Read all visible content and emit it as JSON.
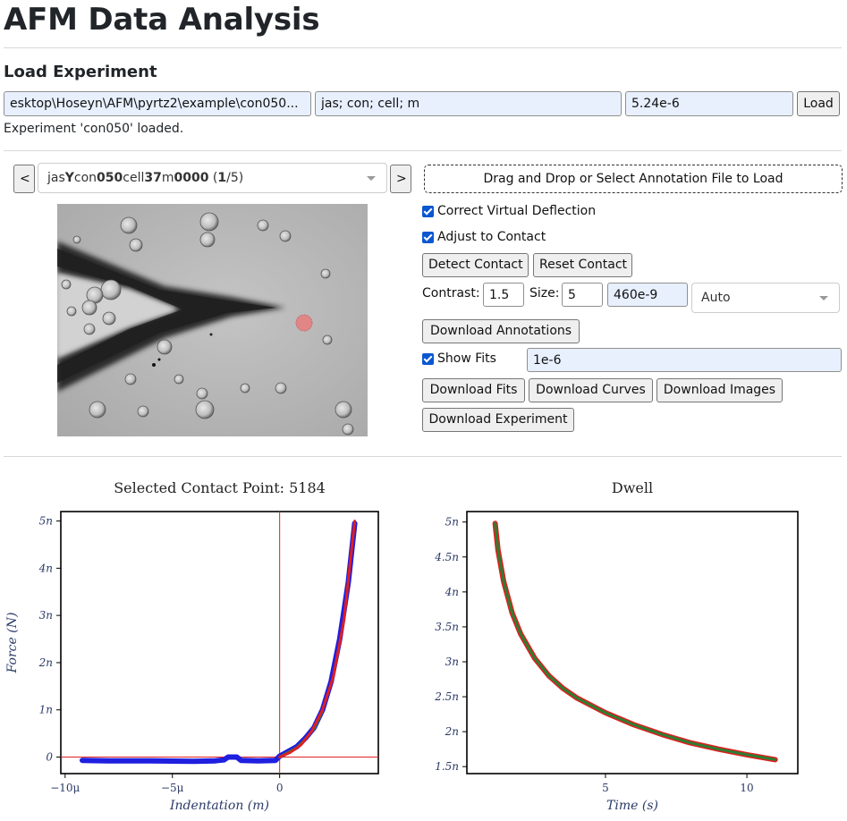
{
  "header": {
    "title": "AFM Data Analysis"
  },
  "load": {
    "section_title": "Load Experiment",
    "path_value": "...esktop\\Hoseyn\\AFM\\pyrtz2\\example\\con050",
    "keys_value": "jas; con; cell; m",
    "radius_value": "5.24e-6",
    "load_label": "Load",
    "status": "Experiment 'con050' loaded."
  },
  "curve_selector": {
    "prev_label": "<",
    "next_label": ">",
    "parts": [
      {
        "text": "jas",
        "bold": false
      },
      {
        "text": "Y",
        "bold": true
      },
      {
        "text": "con",
        "bold": false
      },
      {
        "text": "050",
        "bold": true
      },
      {
        "text": "cell",
        "bold": false
      },
      {
        "text": "37",
        "bold": true
      },
      {
        "text": "m",
        "bold": false
      },
      {
        "text": "0000",
        "bold": true
      },
      {
        "text": " (",
        "bold": false
      },
      {
        "text": "1",
        "bold": true
      },
      {
        "text": "/5)",
        "bold": false
      }
    ]
  },
  "annotation": {
    "dropzone_label": "Drag and Drop or Select Annotation File to Load"
  },
  "controls": {
    "correct_virtual_deflection": {
      "label": "Correct Virtual Deflection",
      "checked": true
    },
    "adjust_to_contact": {
      "label": "Adjust to Contact",
      "checked": true
    },
    "detect_contact_label": "Detect Contact",
    "reset_contact_label": "Reset Contact",
    "contrast_label": "Contrast:",
    "contrast_value": "1.5",
    "size_label": "Size:",
    "size_value": "5",
    "pixel_value": "460e-9",
    "mode_value": "Auto",
    "download_annotations_label": "Download Annotations",
    "show_fits": {
      "label": "Show Fits",
      "checked": true
    },
    "fit_value": "1e-6",
    "download_fits_label": "Download Fits",
    "download_curves_label": "Download Curves",
    "download_images_label": "Download Images",
    "download_experiment_label": "Download Experiment"
  },
  "chart_data": [
    {
      "type": "line",
      "title": "Selected Contact Point: 5184",
      "xlabel": "Indentation (m)",
      "ylabel": "Force (N)",
      "xlim": [
        -1.02e-05,
        4.6e-06
      ],
      "ylim": [
        -3.5e-10,
        5.2e-09
      ],
      "xticks": [
        {
          "v": -1e-05,
          "label": "−10μ"
        },
        {
          "v": -5e-06,
          "label": "−5μ"
        },
        {
          "v": 0,
          "label": "0"
        }
      ],
      "yticks": [
        {
          "v": 0,
          "label": "0"
        },
        {
          "v": 1e-09,
          "label": "1n"
        },
        {
          "v": 2e-09,
          "label": "2n"
        },
        {
          "v": 3e-09,
          "label": "3n"
        },
        {
          "v": 4e-09,
          "label": "4n"
        },
        {
          "v": 5e-09,
          "label": "5n"
        }
      ],
      "contact_point": [
        0,
        0
      ],
      "grid": false,
      "series": [
        {
          "color": "#1f1fe0",
          "x": [
            -9.2e-06,
            -8e-06,
            -6e-06,
            -4e-06,
            -3e-06,
            -2.6e-06,
            -2.4e-06,
            -2e-06,
            -1.8e-06,
            -1e-06,
            -2e-07,
            0,
            4e-07,
            8e-07,
            1.2e-06,
            1.6e-06,
            2e-06,
            2.4e-06,
            2.8e-06,
            3.2e-06,
            3.5e-06
          ],
          "y": [
            -7e-11,
            -8e-11,
            -8e-11,
            -9e-11,
            -8e-11,
            -6e-11,
            0.0,
            0.0,
            -7e-11,
            -8e-11,
            -7e-11,
            2e-11,
            1.2e-10,
            2.2e-10,
            4e-10,
            6.2e-10,
            1e-09,
            1.6e-09,
            2.5e-09,
            3.7e-09,
            4.95e-09
          ]
        },
        {
          "color": "#2e7d32",
          "x": [
            0,
            4e-07,
            8e-07,
            1.2e-06,
            1.6e-06,
            2e-06
          ],
          "y": [
            0.0,
            1e-10,
            2e-10,
            3.8e-10,
            6e-10,
            9.8e-10
          ]
        },
        {
          "color": "#e01f1f",
          "x": [
            0,
            5e-07,
            1e-06,
            1.5e-06,
            2e-06,
            2.5e-06,
            3e-06,
            3.5e-06
          ],
          "y": [
            0.0,
            1e-10,
            2.6e-10,
            5.5e-10,
            1e-09,
            1.7e-09,
            2.9e-09,
            5e-09
          ]
        }
      ]
    },
    {
      "type": "line",
      "title": "Dwell",
      "xlabel": "Time (s)",
      "ylabel": "Force (N)",
      "xlim": [
        0.1,
        11.8
      ],
      "ylim": [
        1.4e-09,
        5.15e-09
      ],
      "xticks": [
        {
          "v": 5,
          "label": "5"
        },
        {
          "v": 10,
          "label": "10"
        }
      ],
      "yticks": [
        {
          "v": 1.5e-09,
          "label": "1.5n"
        },
        {
          "v": 2e-09,
          "label": "2n"
        },
        {
          "v": 2.5e-09,
          "label": "2.5n"
        },
        {
          "v": 3e-09,
          "label": "3n"
        },
        {
          "v": 3.5e-09,
          "label": "3.5n"
        },
        {
          "v": 4e-09,
          "label": "4n"
        },
        {
          "v": 4.5e-09,
          "label": "4.5n"
        },
        {
          "v": 5e-09,
          "label": "5n"
        }
      ],
      "grid": false,
      "series": [
        {
          "color": "#e01f1f",
          "x": [
            1.1,
            1.2,
            1.4,
            1.7,
            2.0,
            2.5,
            3.0,
            3.5,
            4.0,
            5.0,
            6.0,
            7.0,
            8.0,
            9.0,
            10.0,
            11.0
          ],
          "y": [
            4.98e-09,
            4.6e-09,
            4.15e-09,
            3.7e-09,
            3.4e-09,
            3.05e-09,
            2.8e-09,
            2.62e-09,
            2.48e-09,
            2.27e-09,
            2.1e-09,
            1.96e-09,
            1.84e-09,
            1.75e-09,
            1.67e-09,
            1.6e-09
          ]
        },
        {
          "color": "#2e7d32",
          "x": [
            1.1,
            1.2,
            1.4,
            1.7,
            2.0,
            2.5,
            3.0,
            3.5,
            4.0,
            5.0,
            6.0,
            7.0,
            8.0,
            9.0,
            10.0,
            11.0
          ],
          "y": [
            4.98e-09,
            4.6e-09,
            4.15e-09,
            3.7e-09,
            3.4e-09,
            3.05e-09,
            2.8e-09,
            2.62e-09,
            2.48e-09,
            2.27e-09,
            2.1e-09,
            1.96e-09,
            1.84e-09,
            1.75e-09,
            1.67e-09,
            1.6e-09
          ]
        }
      ]
    }
  ]
}
